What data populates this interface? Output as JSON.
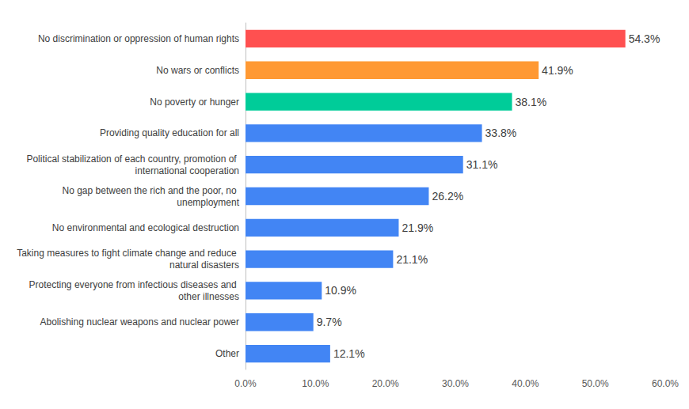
{
  "chart_data": {
    "type": "bar",
    "orientation": "horizontal",
    "categories": [
      "No discrimination or oppression of human rights",
      "No wars or conflicts",
      "No poverty or hunger",
      "Providing quality education for all",
      "Political stabilization of each country, promotion of international cooperation",
      "No gap between the rich and the poor, no unemployment",
      "No environmental and ecological destruction",
      "Taking measures to fight climate change and reduce natural disasters",
      "Protecting everyone from infectious diseases and other illnesses",
      "Abolishing nuclear weapons and nuclear power",
      "Other"
    ],
    "values": [
      54.3,
      41.9,
      38.1,
      33.8,
      31.1,
      26.2,
      21.9,
      21.1,
      10.9,
      9.7,
      12.1
    ],
    "value_labels": [
      "54.3%",
      "41.9%",
      "38.1%",
      "33.8%",
      "31.1%",
      "26.2%",
      "21.9%",
      "21.1%",
      "10.9%",
      "9.7%",
      "12.1%"
    ],
    "colors": [
      "#ff5050",
      "#ff9933",
      "#00cc99",
      "#4285f4",
      "#4285f4",
      "#4285f4",
      "#4285f4",
      "#4285f4",
      "#4285f4",
      "#4285f4",
      "#4285f4"
    ],
    "xlim": [
      0,
      60
    ],
    "xticks": [
      {
        "value": 0,
        "label": "0.0%"
      },
      {
        "value": 10,
        "label": "10.0%"
      },
      {
        "value": 20,
        "label": "20.0%"
      },
      {
        "value": 30,
        "label": "30.0%"
      },
      {
        "value": 40,
        "label": "40.0%"
      },
      {
        "value": 50,
        "label": "50.0%"
      },
      {
        "value": 60,
        "label": "60.0%"
      }
    ],
    "grid": false,
    "data_labels": true
  }
}
